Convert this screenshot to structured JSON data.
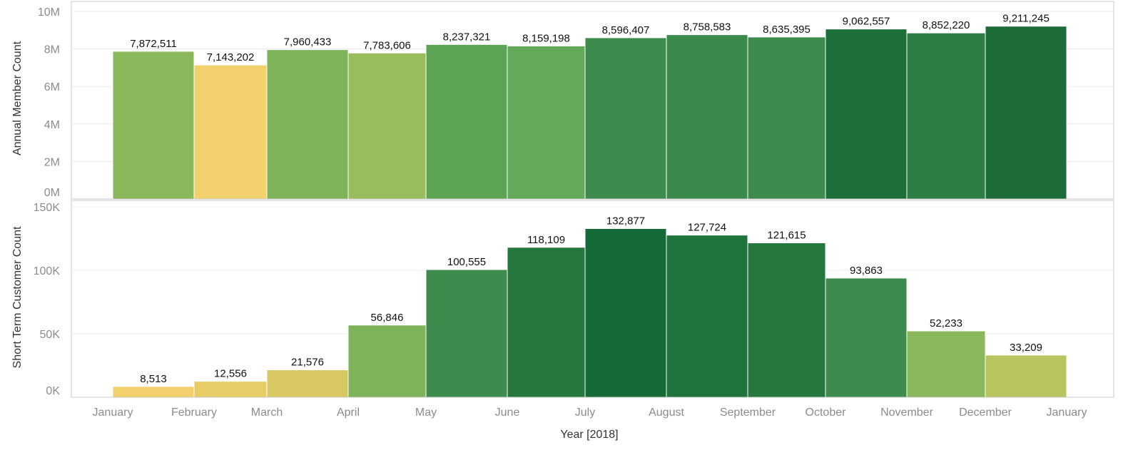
{
  "chart_data": [
    {
      "type": "bar",
      "ylabel": "Annual Member Count",
      "ylim": [
        0,
        10000000
      ],
      "yticks": [
        "0M",
        "2M",
        "4M",
        "6M",
        "8M",
        "10M"
      ],
      "categories": [
        "January",
        "February",
        "March",
        "April",
        "May",
        "June",
        "July",
        "August",
        "September",
        "October",
        "November",
        "December"
      ],
      "values": [
        7872511,
        7143202,
        7960433,
        7783606,
        8237321,
        8159198,
        8596407,
        8758583,
        8635395,
        9062557,
        8852220,
        9211245
      ],
      "labels": [
        "7,872,511",
        "7,143,202",
        "7,960,433",
        "7,783,606",
        "8,237,321",
        "8,159,198",
        "8,596,407",
        "8,758,583",
        "8,635,395",
        "9,062,557",
        "8,852,220",
        "9,211,245"
      ],
      "colors": [
        "#8bb85a",
        "#f2d06b",
        "#7eb35a",
        "#99bd5c",
        "#5da555",
        "#64a859",
        "#3d8c4e",
        "#3a8a4c",
        "#3d8c4e",
        "#1d6f3a",
        "#2d7e45",
        "#1c6b38"
      ]
    },
    {
      "type": "bar",
      "ylabel": "Short Term Customer Count",
      "ylim": [
        0,
        150000
      ],
      "yticks": [
        "0K",
        "50K",
        "100K",
        "150K"
      ],
      "categories": [
        "January",
        "February",
        "March",
        "April",
        "May",
        "June",
        "July",
        "August",
        "September",
        "October",
        "November",
        "December"
      ],
      "values": [
        8513,
        12556,
        21576,
        56846,
        100555,
        118109,
        132877,
        127724,
        121615,
        93863,
        52233,
        33209
      ],
      "labels": [
        "8,513",
        "12,556",
        "21,576",
        "56,846",
        "100,555",
        "118,109",
        "132,877",
        "127,724",
        "121,615",
        "93,863",
        "52,233",
        "33,209"
      ],
      "colors": [
        "#f2d06b",
        "#e8cc65",
        "#d8c863",
        "#7eb35a",
        "#3d8c4e",
        "#267640",
        "#156a37",
        "#1f733d",
        "#267640",
        "#3d8c4e",
        "#8bb85a",
        "#b8c45f"
      ]
    }
  ],
  "x_axis": {
    "title": "Year [2018]",
    "tick_labels": [
      "January",
      "February",
      "March",
      "April",
      "May",
      "June",
      "July",
      "August",
      "September",
      "October",
      "November",
      "December",
      "January"
    ]
  }
}
